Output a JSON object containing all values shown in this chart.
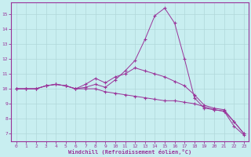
{
  "xlabel": "Windchill (Refroidissement éolien,°C)",
  "bg_color": "#c8eef0",
  "grid_color": "#b0d8da",
  "line_color": "#993399",
  "xlim": [
    -0.5,
    23.5
  ],
  "ylim": [
    6.5,
    15.8
  ],
  "xticks": [
    0,
    1,
    2,
    3,
    4,
    5,
    6,
    7,
    8,
    9,
    10,
    11,
    12,
    13,
    14,
    15,
    16,
    17,
    18,
    19,
    20,
    21,
    22,
    23
  ],
  "yticks": [
    7,
    8,
    9,
    10,
    11,
    12,
    13,
    14,
    15
  ],
  "hours": [
    0,
    1,
    2,
    3,
    4,
    5,
    6,
    7,
    8,
    9,
    10,
    11,
    12,
    13,
    14,
    15,
    16,
    17,
    18,
    19,
    20,
    21,
    22,
    23
  ],
  "line1": [
    10.0,
    10.0,
    10.0,
    10.2,
    10.3,
    10.2,
    10.0,
    10.1,
    10.3,
    10.1,
    10.6,
    11.2,
    11.9,
    13.3,
    14.9,
    15.4,
    14.4,
    12.0,
    9.4,
    8.7,
    8.6,
    8.5,
    7.5,
    6.9
  ],
  "line2": [
    10.0,
    10.0,
    10.0,
    10.2,
    10.3,
    10.2,
    10.0,
    10.0,
    10.0,
    9.8,
    9.7,
    9.6,
    9.5,
    9.4,
    9.3,
    9.2,
    9.2,
    9.1,
    9.0,
    8.8,
    8.6,
    8.5,
    7.8,
    7.0
  ],
  "line3": [
    10.0,
    10.0,
    10.0,
    10.2,
    10.3,
    10.2,
    10.0,
    10.3,
    10.7,
    10.4,
    10.8,
    11.0,
    11.4,
    11.2,
    11.0,
    10.8,
    10.5,
    10.2,
    9.6,
    8.9,
    8.7,
    8.6,
    7.8,
    7.0
  ]
}
